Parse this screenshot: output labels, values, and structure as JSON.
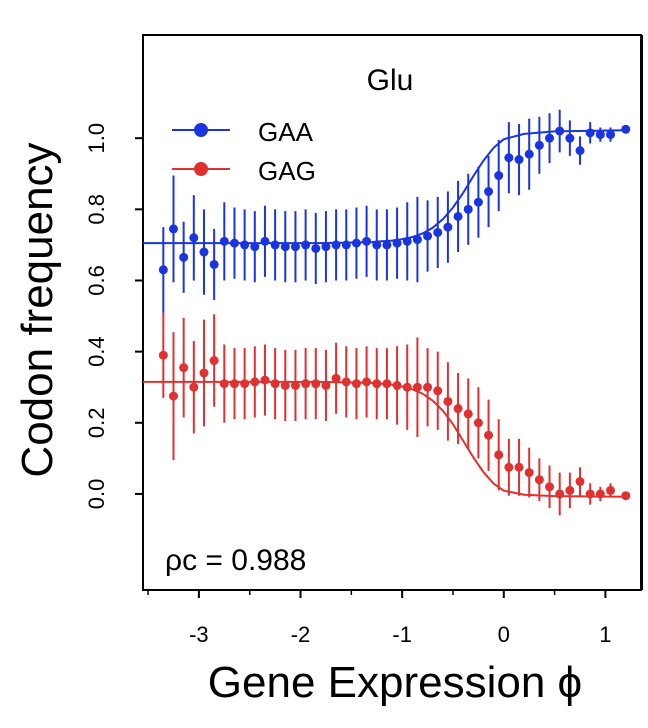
{
  "chart_data": {
    "type": "scatter",
    "title": "Glu",
    "xlabel": "Gene Expression ϕ",
    "ylabel": "Codon frequency",
    "xlim": [
      -3.55,
      1.35
    ],
    "ylim": [
      -0.27,
      1.29
    ],
    "x_ticks": [
      -3,
      -2,
      -1,
      0,
      1
    ],
    "y_ticks": [
      0.0,
      0.2,
      0.4,
      0.6,
      0.8,
      1.0
    ],
    "x_tick_labels": [
      "-3",
      "-2",
      "-1",
      "0",
      "1"
    ],
    "y_tick_labels": [
      "0.0",
      "0.2",
      "0.4",
      "0.6",
      "0.8",
      "1.0"
    ],
    "annotation": "ρc = 0.988",
    "legend": {
      "position": "top-left",
      "entries": [
        "GAA",
        "GAG"
      ]
    },
    "x": [
      -3.35,
      -3.25,
      -3.15,
      -3.05,
      -2.95,
      -2.85,
      -2.75,
      -2.65,
      -2.55,
      -2.45,
      -2.35,
      -2.25,
      -2.15,
      -2.05,
      -1.95,
      -1.85,
      -1.75,
      -1.65,
      -1.55,
      -1.45,
      -1.35,
      -1.25,
      -1.15,
      -1.05,
      -0.95,
      -0.85,
      -0.75,
      -0.65,
      -0.55,
      -0.45,
      -0.35,
      -0.25,
      -0.15,
      -0.05,
      0.05,
      0.15,
      0.25,
      0.35,
      0.45,
      0.55,
      0.65,
      0.75,
      0.85,
      0.95,
      1.05,
      1.2
    ],
    "series": [
      {
        "name": "GAA",
        "color": "#1a35e0",
        "values": [
          0.63,
          0.745,
          0.665,
          0.72,
          0.68,
          0.645,
          0.71,
          0.705,
          0.7,
          0.695,
          0.71,
          0.7,
          0.695,
          0.695,
          0.7,
          0.69,
          0.695,
          0.7,
          0.7,
          0.705,
          0.71,
          0.7,
          0.7,
          0.705,
          0.71,
          0.715,
          0.725,
          0.735,
          0.75,
          0.78,
          0.8,
          0.82,
          0.85,
          0.895,
          0.945,
          0.94,
          0.955,
          0.98,
          1.0,
          1.02,
          1.0,
          0.965,
          1.015,
          1.01,
          1.01,
          1.025
        ],
        "error": [
          0.12,
          0.15,
          0.1,
          0.12,
          0.12,
          0.1,
          0.11,
          0.1,
          0.1,
          0.1,
          0.1,
          0.1,
          0.1,
          0.1,
          0.1,
          0.1,
          0.1,
          0.1,
          0.1,
          0.1,
          0.1,
          0.1,
          0.1,
          0.1,
          0.11,
          0.12,
          0.1,
          0.1,
          0.1,
          0.1,
          0.1,
          0.1,
          0.1,
          0.1,
          0.1,
          0.1,
          0.1,
          0.08,
          0.07,
          0.06,
          0.05,
          0.04,
          0.03,
          0.02,
          0.02,
          0.0
        ],
        "fit": [
          0.705,
          0.705,
          0.705,
          0.705,
          0.705,
          0.705,
          0.705,
          0.705,
          0.705,
          0.705,
          0.706,
          0.707,
          0.708,
          0.71,
          0.712,
          0.716,
          0.722,
          0.732,
          0.748,
          0.772,
          0.805,
          0.846,
          0.893,
          0.937,
          0.973,
          0.997,
          1.012,
          1.019,
          1.022
        ]
      },
      {
        "name": "GAG",
        "color": "#e03030",
        "values": [
          0.39,
          0.275,
          0.355,
          0.3,
          0.34,
          0.375,
          0.31,
          0.31,
          0.31,
          0.315,
          0.32,
          0.31,
          0.305,
          0.305,
          0.31,
          0.31,
          0.305,
          0.325,
          0.315,
          0.31,
          0.315,
          0.31,
          0.31,
          0.305,
          0.3,
          0.3,
          0.3,
          0.29,
          0.26,
          0.24,
          0.225,
          0.2,
          0.165,
          0.11,
          0.075,
          0.075,
          0.06,
          0.04,
          0.02,
          0.0,
          0.01,
          0.035,
          0.0,
          0.0,
          0.01,
          -0.005
        ],
        "error": [
          0.12,
          0.18,
          0.14,
          0.13,
          0.15,
          0.13,
          0.11,
          0.1,
          0.1,
          0.1,
          0.1,
          0.1,
          0.1,
          0.1,
          0.1,
          0.1,
          0.1,
          0.1,
          0.1,
          0.1,
          0.1,
          0.1,
          0.1,
          0.11,
          0.12,
          0.14,
          0.11,
          0.11,
          0.11,
          0.1,
          0.1,
          0.1,
          0.1,
          0.1,
          0.08,
          0.08,
          0.07,
          0.06,
          0.06,
          0.06,
          0.05,
          0.04,
          0.03,
          0.02,
          0.02,
          0.0
        ],
        "fit": [
          0.315,
          0.315,
          0.315,
          0.315,
          0.315,
          0.315,
          0.315,
          0.315,
          0.315,
          0.315,
          0.314,
          0.313,
          0.312,
          0.31,
          0.307,
          0.302,
          0.294,
          0.282,
          0.262,
          0.234,
          0.196,
          0.15,
          0.103,
          0.061,
          0.029,
          0.009,
          -0.002,
          -0.006,
          -0.008
        ]
      }
    ],
    "fit_x": [
      -3.55,
      -3.4,
      -3.2,
      -3.0,
      -2.8,
      -2.6,
      -2.4,
      -2.2,
      -2.0,
      -1.8,
      -1.6,
      -1.4,
      -1.3,
      -1.2,
      -1.1,
      -1.0,
      -0.9,
      -0.8,
      -0.7,
      -0.6,
      -0.5,
      -0.4,
      -0.3,
      -0.2,
      -0.1,
      0.0,
      0.2,
      0.5,
      1.2
    ]
  }
}
